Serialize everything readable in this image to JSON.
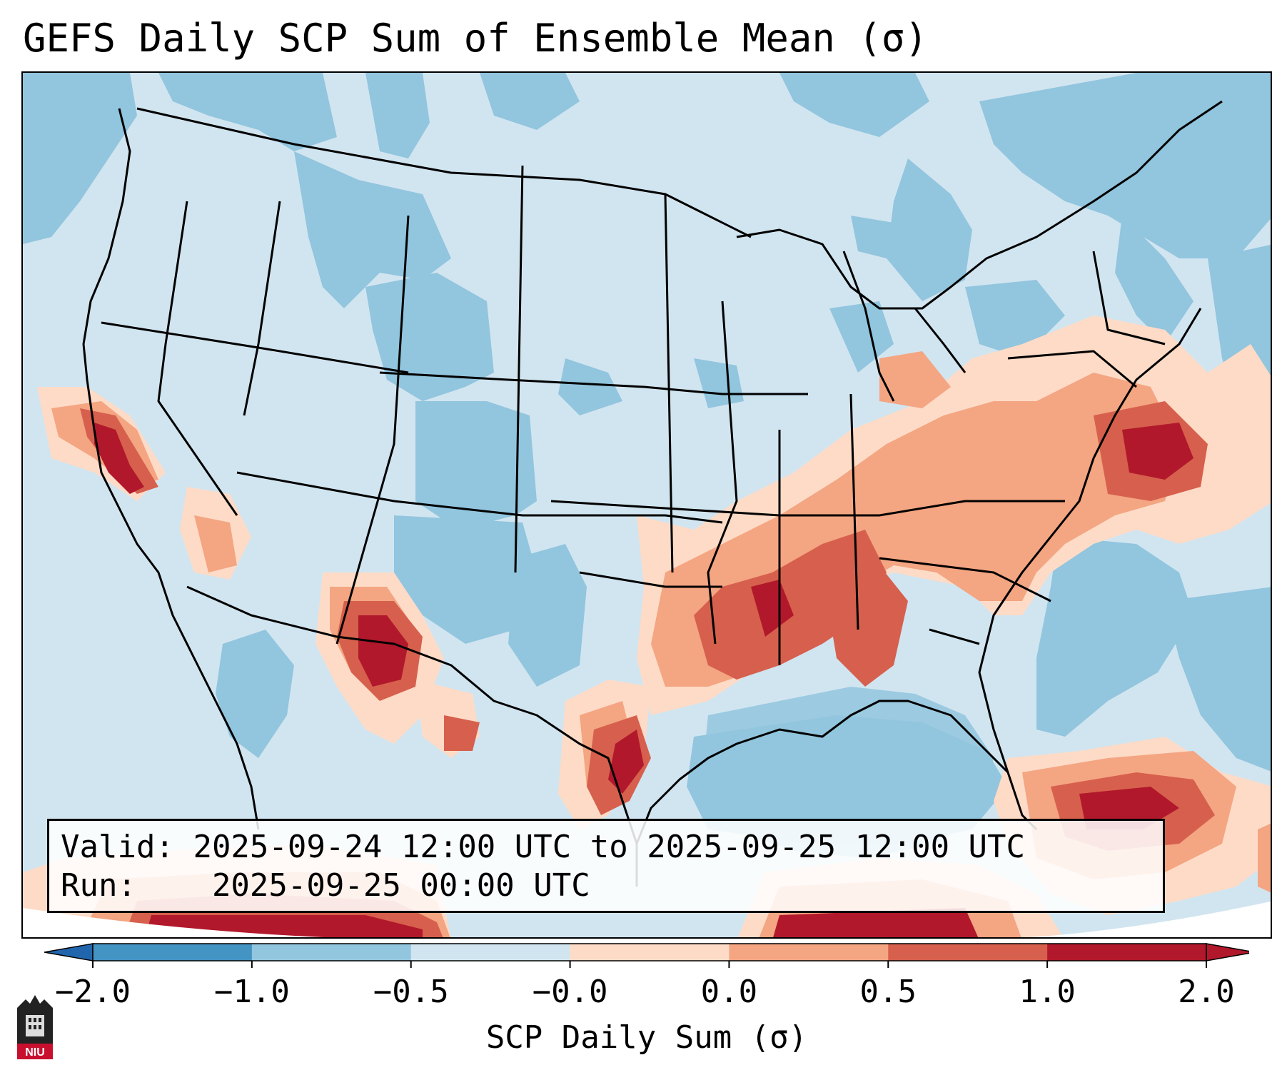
{
  "title": "GEFS Daily SCP Sum of Ensemble Mean (σ)",
  "info": {
    "valid_label": "Valid:",
    "valid_value": "2025-09-24 12:00 UTC to 2025-09-25 12:00 UTC",
    "run_label": "Run:",
    "run_value": "2025-09-25 00:00 UTC"
  },
  "colorbar": {
    "label": "SCP Daily Sum (σ)",
    "ticks": [
      "−2.0",
      "−1.0",
      "−0.5",
      "−0.0",
      "0.0",
      "0.5",
      "1.0",
      "2.0"
    ],
    "colors": [
      "#4393c3",
      "#92c5de",
      "#d1e5f0",
      "#fddbc7",
      "#f4a582",
      "#d6604d",
      "#b2182b"
    ],
    "extend_low_color": "#2166ac",
    "extend_high_color": "#b2182b"
  },
  "map": {
    "background_color": "#d1e5f0",
    "region": "Continental United States",
    "highlights": [
      "California coast",
      "Arizona",
      "Texas Gulf coast",
      "Lower Mississippi Valley",
      "Mid-Atlantic coast",
      "Florida",
      "Bahamas"
    ]
  },
  "logo": {
    "text": "NIU"
  }
}
